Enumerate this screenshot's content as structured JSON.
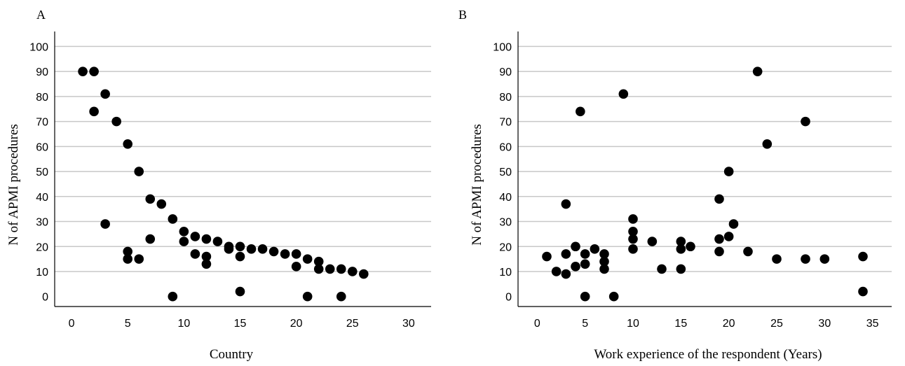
{
  "chart_data": [
    {
      "type": "scatter",
      "panel_label": "A",
      "xlabel": "Country",
      "ylabel": "N of APMI procedures",
      "xlim": [
        -1.5,
        32
      ],
      "ylim": [
        -4,
        106
      ],
      "xticks": [
        "0",
        "5",
        "10",
        "15",
        "20",
        "25",
        "30"
      ],
      "yticks": [
        "0",
        "10",
        "20",
        "30",
        "40",
        "50",
        "60",
        "70",
        "80",
        "90",
        "100"
      ],
      "grid": "horizontal",
      "points": [
        [
          1,
          90
        ],
        [
          2,
          90
        ],
        [
          2,
          74
        ],
        [
          3,
          81
        ],
        [
          3,
          29
        ],
        [
          4,
          70
        ],
        [
          5,
          61
        ],
        [
          5,
          18
        ],
        [
          5,
          15
        ],
        [
          6,
          50
        ],
        [
          6,
          15
        ],
        [
          7,
          39
        ],
        [
          7,
          23
        ],
        [
          8,
          37
        ],
        [
          9,
          31
        ],
        [
          9,
          0
        ],
        [
          10,
          26
        ],
        [
          10,
          22
        ],
        [
          11,
          24
        ],
        [
          11,
          17
        ],
        [
          12,
          23
        ],
        [
          12,
          16
        ],
        [
          12,
          13
        ],
        [
          13,
          22
        ],
        [
          14,
          20
        ],
        [
          14,
          19
        ],
        [
          15,
          20
        ],
        [
          15,
          16
        ],
        [
          15,
          2
        ],
        [
          16,
          19
        ],
        [
          17,
          19
        ],
        [
          18,
          18
        ],
        [
          19,
          17
        ],
        [
          20,
          17
        ],
        [
          20,
          12
        ],
        [
          21,
          15
        ],
        [
          21,
          0
        ],
        [
          22,
          14
        ],
        [
          22,
          11
        ],
        [
          23,
          11
        ],
        [
          24,
          11
        ],
        [
          24,
          0
        ],
        [
          25,
          10
        ],
        [
          26,
          9
        ]
      ]
    },
    {
      "type": "scatter",
      "panel_label": "B",
      "xlabel": "Work experience of the respondent (Years)",
      "ylabel": "N of APMI procedures",
      "xlim": [
        -2,
        37
      ],
      "ylim": [
        -4,
        106
      ],
      "xticks": [
        "0",
        "5",
        "10",
        "15",
        "20",
        "25",
        "30",
        "35"
      ],
      "yticks": [
        "0",
        "10",
        "20",
        "30",
        "40",
        "50",
        "60",
        "70",
        "80",
        "90",
        "100"
      ],
      "grid": "horizontal",
      "points": [
        [
          1,
          16
        ],
        [
          2,
          10
        ],
        [
          3,
          37
        ],
        [
          3,
          17
        ],
        [
          3,
          9
        ],
        [
          4,
          20
        ],
        [
          4,
          12
        ],
        [
          4.5,
          74
        ],
        [
          5,
          17
        ],
        [
          5,
          13
        ],
        [
          5,
          0
        ],
        [
          6,
          19
        ],
        [
          7,
          17
        ],
        [
          7,
          14
        ],
        [
          7,
          11
        ],
        [
          8,
          0
        ],
        [
          9,
          81
        ],
        [
          10,
          31
        ],
        [
          10,
          26
        ],
        [
          10,
          23
        ],
        [
          10,
          19
        ],
        [
          12,
          22
        ],
        [
          13,
          11
        ],
        [
          15,
          22
        ],
        [
          15,
          19
        ],
        [
          15,
          11
        ],
        [
          16,
          20
        ],
        [
          19,
          39
        ],
        [
          19,
          23
        ],
        [
          19,
          18
        ],
        [
          20,
          50
        ],
        [
          20,
          24
        ],
        [
          20.5,
          29
        ],
        [
          22,
          18
        ],
        [
          23,
          90
        ],
        [
          24,
          61
        ],
        [
          25,
          15
        ],
        [
          28,
          70
        ],
        [
          28,
          15
        ],
        [
          30,
          15
        ],
        [
          34,
          16
        ],
        [
          34,
          2
        ]
      ]
    }
  ]
}
